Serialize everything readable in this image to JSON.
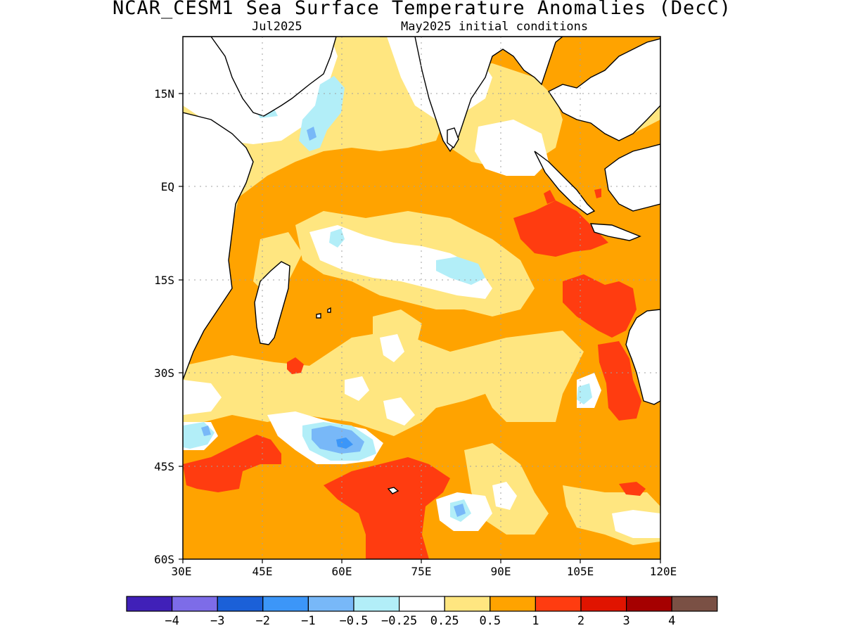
{
  "title": "NCAR_CESM1 Sea Surface Temperature Anomalies (DecC)",
  "subtitle_left": "Jul2025",
  "subtitle_right": "May2025 initial conditions",
  "map": {
    "lon_labels": [
      "30E",
      "45E",
      "60E",
      "75E",
      "90E",
      "105E",
      "120E"
    ],
    "lat_labels": [
      "15N",
      "EQ",
      "15S",
      "30S",
      "45S",
      "60S"
    ],
    "ocean_default_color": "#ffa300",
    "land_color": "#ffffff",
    "coastline_color": "#000000"
  },
  "colorbar": {
    "colors": [
      "#4020b8",
      "#7d6ce8",
      "#1b60d8",
      "#3c96f8",
      "#78b8f8",
      "#b2eef8",
      "#ffffff",
      "#ffe680",
      "#ffa300",
      "#ff3c10",
      "#e01400",
      "#a50000",
      "#7a5044"
    ],
    "labels": [
      "−4",
      "−3",
      "−2",
      "−1",
      "−0.5",
      "−0.25",
      "0.25",
      "0.5",
      "1",
      "2",
      "3",
      "4"
    ]
  }
}
